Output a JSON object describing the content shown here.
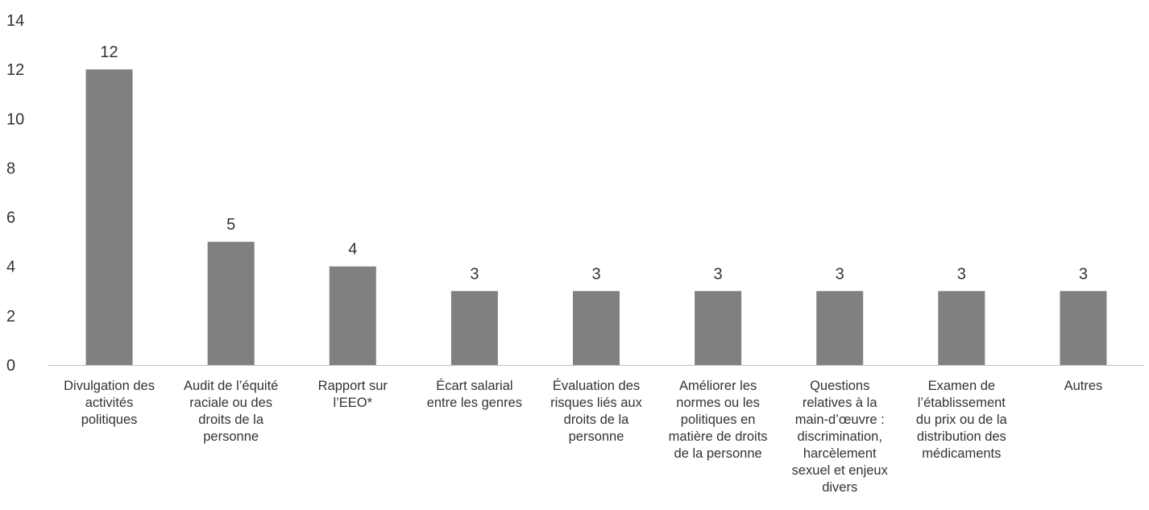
{
  "chart_data": {
    "type": "bar",
    "categories": [
      "Divulgation des\nactivités\npolitiques",
      "Audit de l’équité\nraciale ou des\ndroits de la\npersonne",
      "Rapport sur\nl’EEO*",
      "Écart salarial\nentre les genres",
      "Évaluation des\nrisques liés aux\ndroits de la\npersonne",
      "Améliorer les\nnormes ou les\npolitiques en\nmatière de droits\nde la personne",
      "Questions\nrelatives à la\nmain-d’œuvre :\ndiscrimination,\nharcèlement\nsexuel et enjeux\ndivers",
      "Examen de\nl’établissement\ndu prix ou de la\ndistribution des\nmédicaments",
      "Autres"
    ],
    "values": [
      12,
      5,
      4,
      3,
      3,
      3,
      3,
      3,
      3
    ],
    "data_labels": [
      "12",
      "5",
      "4",
      "3",
      "3",
      "3",
      "3",
      "3",
      "3"
    ],
    "yticks": [
      "0",
      "2",
      "4",
      "6",
      "8",
      "10",
      "12",
      "14"
    ],
    "ylim": [
      0,
      14
    ],
    "grid": false,
    "colors": {
      "bar": "#808080",
      "axis": "#bfbfbf",
      "text": "#333333"
    }
  }
}
